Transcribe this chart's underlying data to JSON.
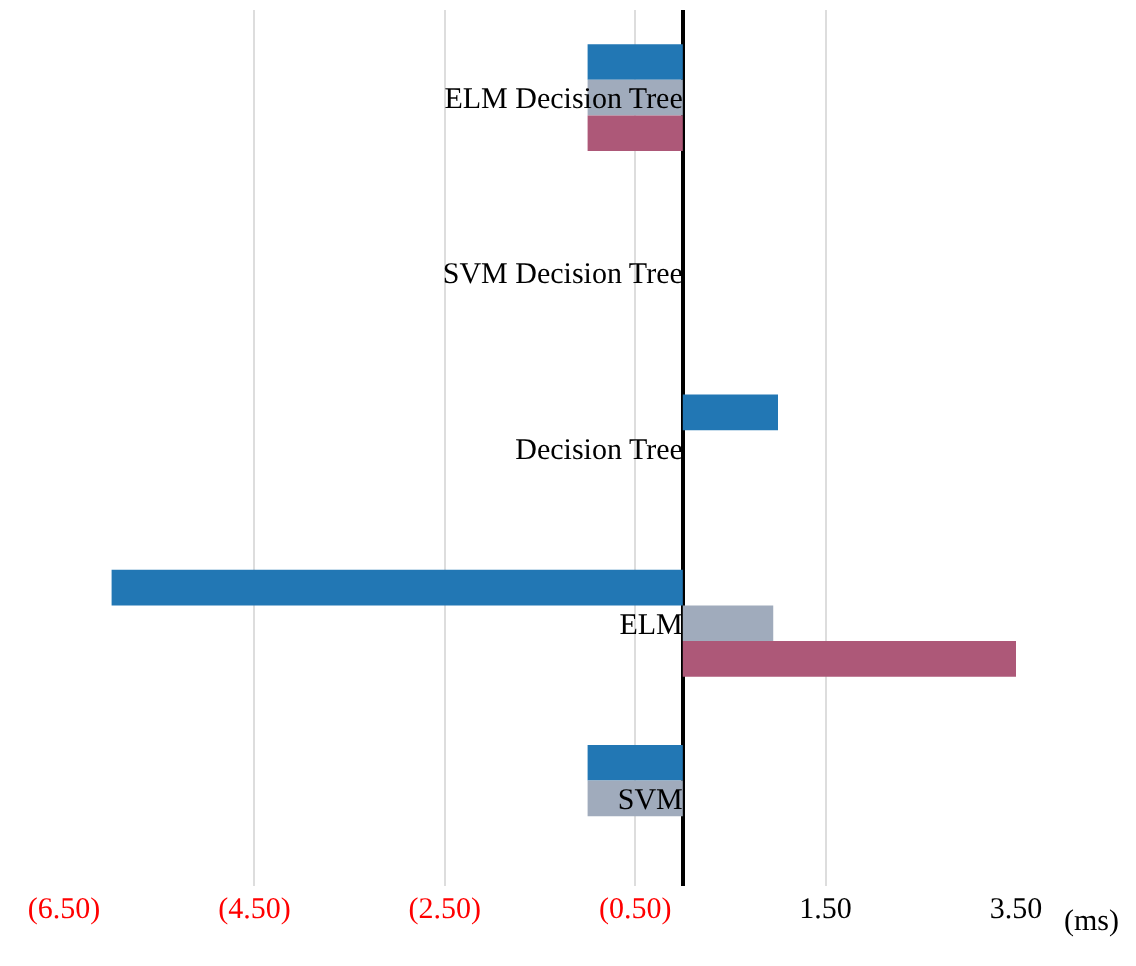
{
  "chart_data": {
    "type": "bar",
    "orientation": "horizontal",
    "xlabel": "(ms)",
    "categories": [
      "ELM Decision Tree",
      "SVM Decision Tree",
      "Decision Tree",
      "ELM",
      "SVM"
    ],
    "series": [
      {
        "color": "#2277b4",
        "values": [
          -1.0,
          null,
          1.0,
          -6.0,
          -1.0
        ]
      },
      {
        "color": "#a0abbc",
        "values": [
          -1.0,
          null,
          null,
          0.95,
          -1.0
        ]
      },
      {
        "color": "#ad5878",
        "values": [
          -1.0,
          null,
          null,
          3.5,
          null
        ]
      }
    ],
    "xlim": [
      -6.5,
      3.5
    ],
    "xticks": [
      {
        "value": -6.5,
        "label": "(6.50)"
      },
      {
        "value": -4.5,
        "label": "(4.50)"
      },
      {
        "value": -2.5,
        "label": "(2.50)"
      },
      {
        "value": -0.5,
        "label": "(0.50)"
      },
      {
        "value": 1.5,
        "label": "1.50"
      },
      {
        "value": 3.5,
        "label": "3.50"
      }
    ],
    "grid": "x"
  }
}
